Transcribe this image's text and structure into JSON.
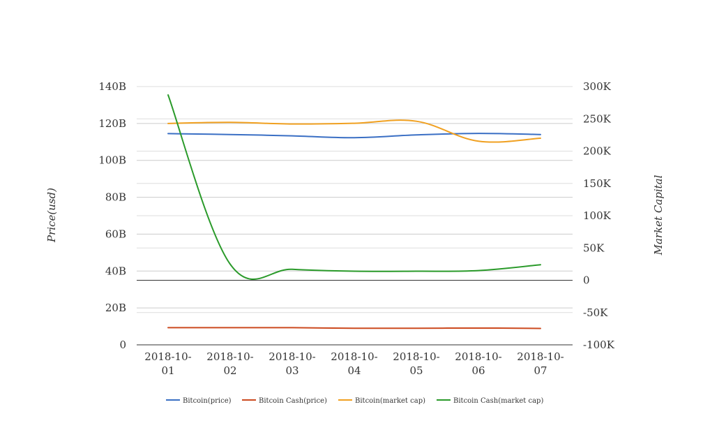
{
  "chart_data": {
    "type": "line",
    "categories": [
      [
        "2018-10-",
        "01"
      ],
      [
        "2018-10-",
        "02"
      ],
      [
        "2018-10-",
        "03"
      ],
      [
        "2018-10-",
        "04"
      ],
      [
        "2018-10-",
        "05"
      ],
      [
        "2018-10-",
        "06"
      ],
      [
        "2018-10-",
        "07"
      ]
    ],
    "y_left": {
      "label": "Price(usd)",
      "ticks": [
        0,
        20,
        40,
        60,
        80,
        100,
        120,
        140
      ],
      "tick_labels": [
        "0",
        "20B",
        "40B",
        "60B",
        "80B",
        "100B",
        "120B",
        "140B"
      ],
      "ylim": [
        0,
        140
      ]
    },
    "y_right": {
      "label": "Market Capital",
      "ticks": [
        -100,
        -50,
        0,
        50,
        100,
        150,
        200,
        250,
        300
      ],
      "tick_labels": [
        "-100K",
        "-50K",
        "0",
        "50K",
        "100K",
        "150K",
        "200K",
        "250K",
        "300K"
      ],
      "ylim": [
        -100,
        300
      ]
    },
    "grid": true,
    "legend_position": "bottom",
    "series": [
      {
        "name": "Bitcoin(price)",
        "axis": "left",
        "color": "#3a6fc4",
        "values": [
          114.5,
          114,
          113.3,
          112.3,
          113.8,
          114.6,
          114
        ]
      },
      {
        "name": "Bitcoin Cash(price)",
        "axis": "left",
        "color": "#cc4a1f",
        "values": [
          9.3,
          9.3,
          9.3,
          9.0,
          9.0,
          9.1,
          8.9
        ]
      },
      {
        "name": "Bitcoin(market cap)",
        "axis": "left",
        "color": "#f0a020",
        "values": [
          120,
          120.6,
          119.7,
          120.1,
          121.2,
          110.4,
          112
        ]
      },
      {
        "name": "Bitcoin Cash(market cap)",
        "axis": "right",
        "color": "#2a9a2a",
        "values": [
          287,
          25,
          17,
          14,
          14,
          15,
          24
        ]
      }
    ]
  }
}
